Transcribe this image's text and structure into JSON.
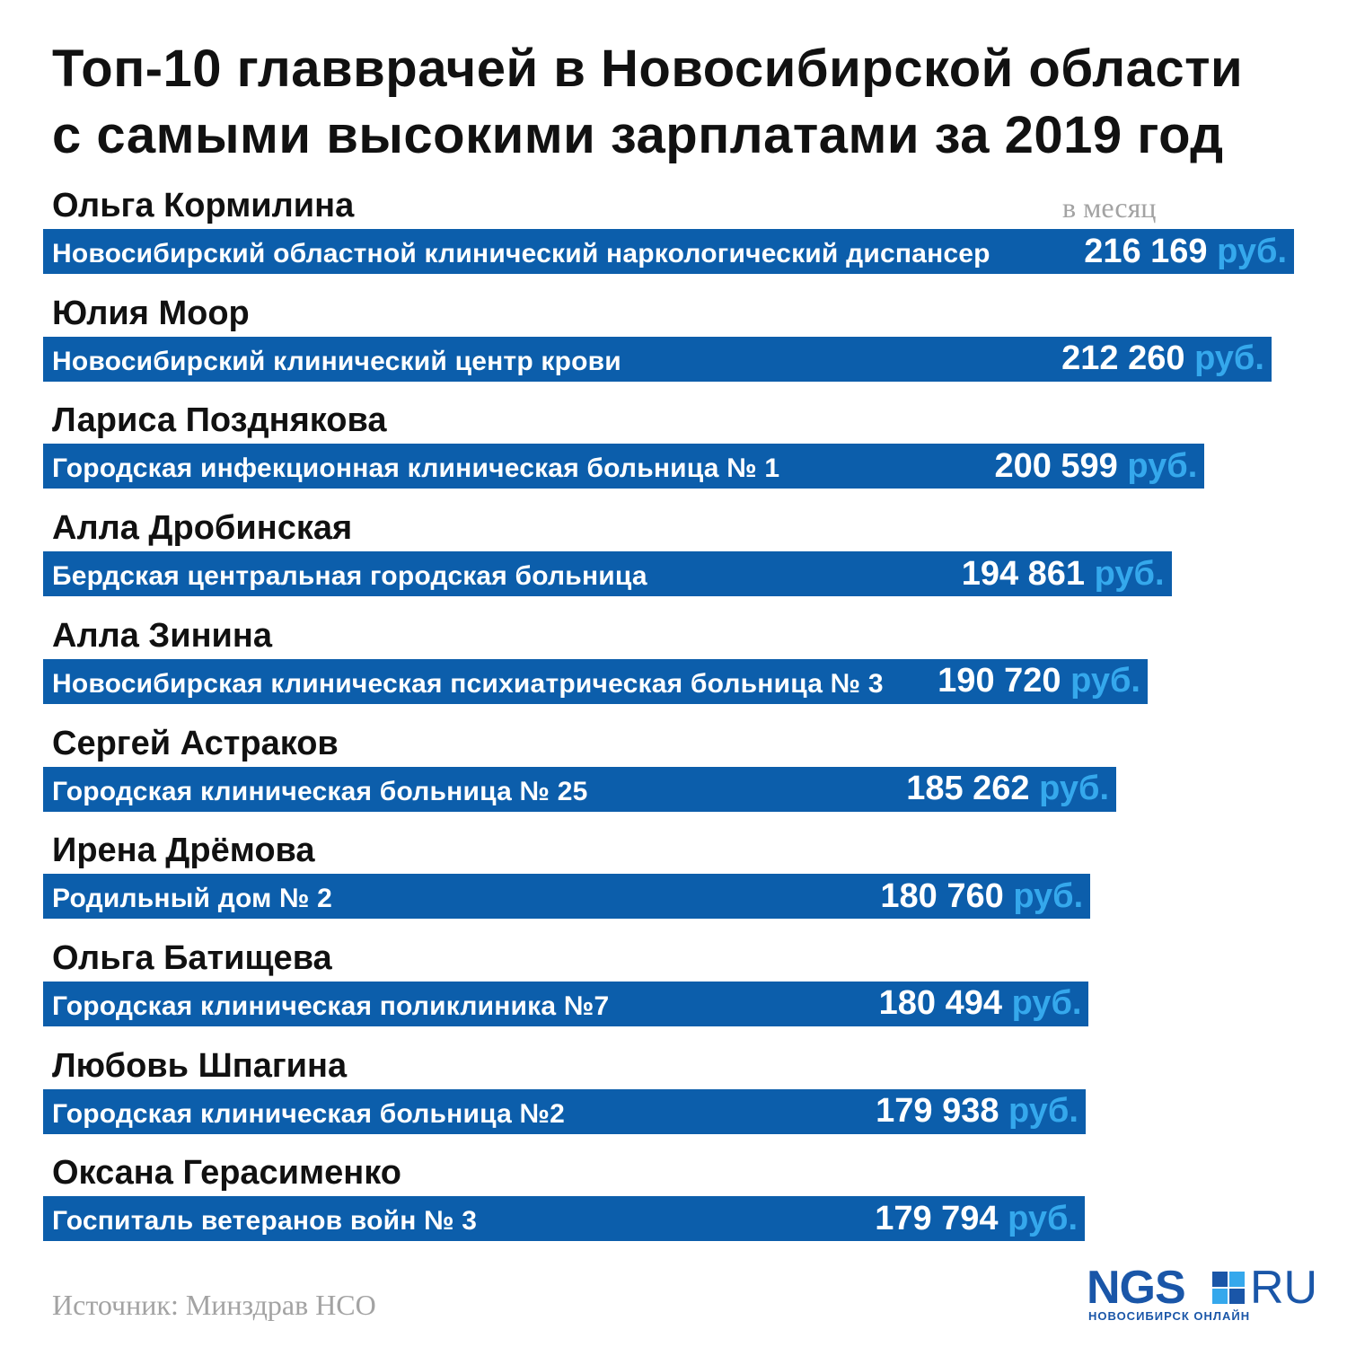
{
  "title_lines": [
    "Топ-10 главврачей в Новосибирской области",
    "с самыми высокими зарплатами за 2019 год"
  ],
  "unit_note": "в месяц",
  "source": "Источник: Минздрав НСО",
  "logo": {
    "ngs": "NGS",
    "ru": "RU",
    "subtitle": "НОВОСИБИРСК ОНЛАЙН"
  },
  "colors": {
    "bar": "#0c5eab",
    "unit": "#35a8ec",
    "muted": "#a3a3a3"
  },
  "chart_data": {
    "type": "bar",
    "orientation": "horizontal",
    "title": "Топ-10 главврачей в Новосибирской области с самыми высокими зарплатами за 2019 год",
    "value_unit": "руб.",
    "value_note": "в месяц",
    "rows": [
      {
        "name": "Ольга Кормилина",
        "institution": "Новосибирский областной клинический наркологический диспансер",
        "value": 216169,
        "value_text": "216 169"
      },
      {
        "name": "Юлия Моор",
        "institution": "Новосибирский клинический центр крови",
        "value": 212260,
        "value_text": "212 260"
      },
      {
        "name": "Лариса Позднякова",
        "institution": "Городская инфекционная клиническая больница № 1",
        "value": 200599,
        "value_text": "200 599"
      },
      {
        "name": "Алла Дробинская",
        "institution": "Бердская центральная городская больница",
        "value": 194861,
        "value_text": "194 861"
      },
      {
        "name": "Алла Зинина",
        "institution": "Новосибирская клиническая психиатрическая больница № 3",
        "value": 190720,
        "value_text": "190 720"
      },
      {
        "name": "Сергей Астраков",
        "institution": "Городская клиническая больница № 25",
        "value": 185262,
        "value_text": "185 262"
      },
      {
        "name": "Ирена Дрёмова",
        "institution": "Родильный дом № 2",
        "value": 180760,
        "value_text": "180 760"
      },
      {
        "name": "Ольга Батищева",
        "institution": "Городская клиническая поликлиника №7",
        "value": 180494,
        "value_text": "180 494"
      },
      {
        "name": "Любовь Шпагина",
        "institution": "Городская клиническая больница №2",
        "value": 179938,
        "value_text": "179 938"
      },
      {
        "name": "Оксана Герасименко",
        "institution": "Госпиталь ветеранов войн № 3",
        "value": 179794,
        "value_text": "179 794"
      }
    ]
  }
}
